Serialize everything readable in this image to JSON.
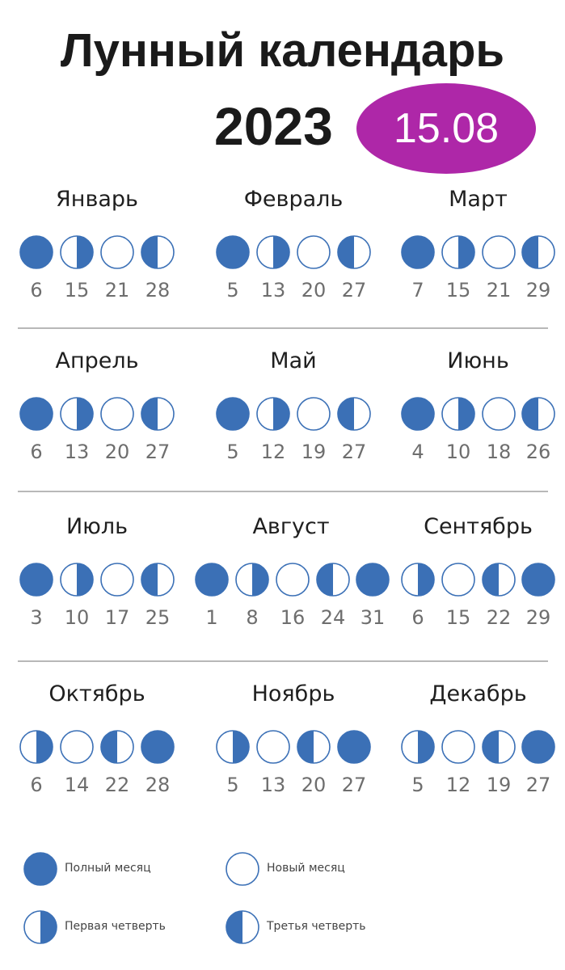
{
  "title": {
    "line1": "Лунный календарь",
    "year": "2023",
    "badge": "15.08"
  },
  "colors": {
    "phase_fill": "#3b70b6",
    "badge": "#ae27a8"
  },
  "months": [
    {
      "name": "Январь",
      "phases": [
        {
          "type": "full",
          "day": "6"
        },
        {
          "type": "first",
          "day": "15"
        },
        {
          "type": "new",
          "day": "21"
        },
        {
          "type": "third",
          "day": "28"
        }
      ]
    },
    {
      "name": "Февраль",
      "phases": [
        {
          "type": "full",
          "day": "5"
        },
        {
          "type": "first",
          "day": "13"
        },
        {
          "type": "new",
          "day": "20"
        },
        {
          "type": "third",
          "day": "27"
        }
      ]
    },
    {
      "name": "Март",
      "phases": [
        {
          "type": "full",
          "day": "7"
        },
        {
          "type": "first",
          "day": "15"
        },
        {
          "type": "new",
          "day": "21"
        },
        {
          "type": "third",
          "day": "29"
        }
      ]
    },
    {
      "name": "Апрель",
      "phases": [
        {
          "type": "full",
          "day": "6"
        },
        {
          "type": "first",
          "day": "13"
        },
        {
          "type": "new",
          "day": "20"
        },
        {
          "type": "third",
          "day": "27"
        }
      ]
    },
    {
      "name": "Май",
      "phases": [
        {
          "type": "full",
          "day": "5"
        },
        {
          "type": "first",
          "day": "12"
        },
        {
          "type": "new",
          "day": "19"
        },
        {
          "type": "third",
          "day": "27"
        }
      ]
    },
    {
      "name": "Июнь",
      "phases": [
        {
          "type": "full",
          "day": "4"
        },
        {
          "type": "first",
          "day": "10"
        },
        {
          "type": "new",
          "day": "18"
        },
        {
          "type": "third",
          "day": "26"
        }
      ]
    },
    {
      "name": "Июль",
      "phases": [
        {
          "type": "full",
          "day": "3"
        },
        {
          "type": "first",
          "day": "10"
        },
        {
          "type": "new",
          "day": "17"
        },
        {
          "type": "third",
          "day": "25"
        }
      ]
    },
    {
      "name": "Август",
      "phases": [
        {
          "type": "full",
          "day": "1"
        },
        {
          "type": "first",
          "day": "8"
        },
        {
          "type": "new",
          "day": "16"
        },
        {
          "type": "third",
          "day": "24"
        },
        {
          "type": "full",
          "day": "31"
        }
      ]
    },
    {
      "name": "Сентябрь",
      "phases": [
        {
          "type": "first",
          "day": "6"
        },
        {
          "type": "new",
          "day": "15"
        },
        {
          "type": "third",
          "day": "22"
        },
        {
          "type": "full",
          "day": "29"
        }
      ]
    },
    {
      "name": "Октябрь",
      "phases": [
        {
          "type": "first",
          "day": "6"
        },
        {
          "type": "new",
          "day": "14"
        },
        {
          "type": "third",
          "day": "22"
        },
        {
          "type": "full",
          "day": "28"
        }
      ]
    },
    {
      "name": "Ноябрь",
      "phases": [
        {
          "type": "first",
          "day": "5"
        },
        {
          "type": "new",
          "day": "13"
        },
        {
          "type": "third",
          "day": "20"
        },
        {
          "type": "full",
          "day": "27"
        }
      ]
    },
    {
      "name": "Декабрь",
      "phases": [
        {
          "type": "first",
          "day": "5"
        },
        {
          "type": "new",
          "day": "12"
        },
        {
          "type": "third",
          "day": "19"
        },
        {
          "type": "full",
          "day": "27"
        }
      ]
    }
  ],
  "legend": [
    {
      "type": "full",
      "label": "Полный месяц"
    },
    {
      "type": "new",
      "label": "Новый месяц"
    },
    {
      "type": "first",
      "label": "Первая четверть"
    },
    {
      "type": "third",
      "label": "Третья четверть"
    }
  ]
}
